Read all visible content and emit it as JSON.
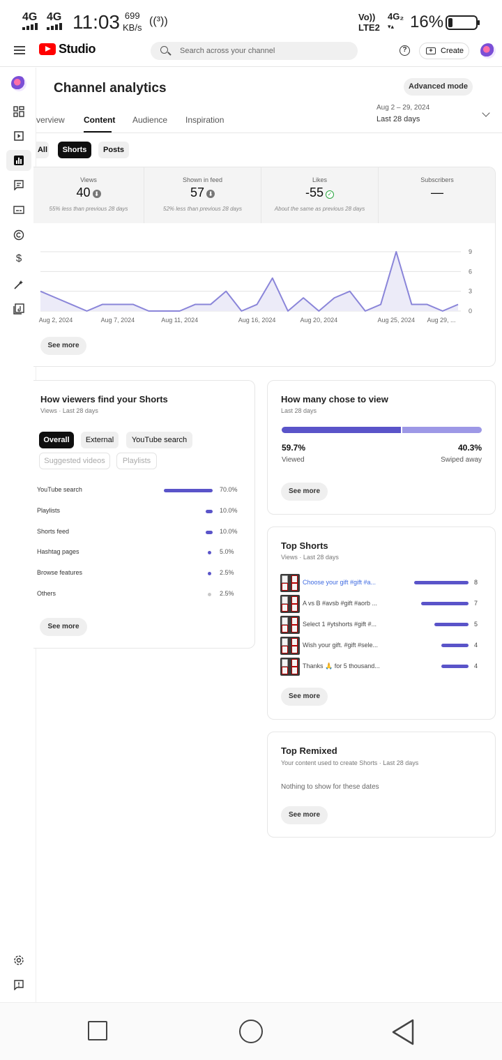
{
  "status_bar": {
    "network1": "4G",
    "network2": "4G",
    "time": "11:03",
    "speed_value": "699",
    "speed_unit": "KB/s",
    "hotspot": "((³))",
    "volte": "Vo))",
    "lte": "LTE2",
    "net_type": "4G₂",
    "battery_pct": "16%",
    "battery_level": 0.16
  },
  "topbar": {
    "app_name": "Studio",
    "search_placeholder": "Search across your channel",
    "help": "?",
    "create_label": "Create"
  },
  "page": {
    "title": "Channel analytics",
    "advanced_mode": "Advanced mode",
    "tabs": [
      "verview",
      "Content",
      "Audience",
      "Inspiration"
    ],
    "date_range": "Aug 2 – 29, 2024",
    "date_label": "Last 28 days"
  },
  "filters": [
    "All",
    "Shorts",
    "Posts"
  ],
  "metrics": [
    {
      "label": "Views",
      "value": "40",
      "note": "55% less than previous 28 days",
      "icon": "down-circle-icon",
      "icon_glyph": "⬇"
    },
    {
      "label": "Shown in feed",
      "value": "57",
      "note": "52% less than previous 28 days",
      "icon": "down-circle-icon",
      "icon_glyph": "⬇"
    },
    {
      "label": "Likes",
      "value": "-55",
      "note": "About the same as previous 28 days",
      "icon": "check-circle-icon",
      "icon_glyph": "✓"
    },
    {
      "label": "Subscribers",
      "value": "—",
      "note": "",
      "icon": "",
      "icon_glyph": ""
    }
  ],
  "chart_data": {
    "type": "area",
    "x": [
      "Aug 2",
      "Aug 3",
      "Aug 4",
      "Aug 5",
      "Aug 6",
      "Aug 7",
      "Aug 8",
      "Aug 9",
      "Aug 10",
      "Aug 11",
      "Aug 12",
      "Aug 13",
      "Aug 14",
      "Aug 15",
      "Aug 16",
      "Aug 17",
      "Aug 18",
      "Aug 19",
      "Aug 20",
      "Aug 21",
      "Aug 22",
      "Aug 23",
      "Aug 24",
      "Aug 25",
      "Aug 26",
      "Aug 27",
      "Aug 28",
      "Aug 29"
    ],
    "series": [
      {
        "values": [
          3,
          2,
          1,
          0,
          1,
          1,
          1,
          0,
          0,
          0,
          1,
          1,
          3,
          0,
          1,
          5,
          0,
          2,
          0,
          2,
          3,
          0,
          1,
          9,
          1,
          1,
          0,
          1
        ]
      }
    ],
    "x_ticks": [
      "Aug 2, 2024",
      "Aug 7, 2024",
      "Aug 11, 2024",
      "Aug 16, 2024",
      "Aug 20, 2024",
      "Aug 25, 2024",
      "Aug 29, ..."
    ],
    "x_tick_index": [
      0,
      5,
      9,
      14,
      18,
      23,
      27
    ],
    "y_ticks": [
      9,
      6,
      3,
      0
    ],
    "ylim": [
      0,
      9
    ],
    "color": "#8a85d9",
    "fill": "#ecebf8",
    "see_more": "See more"
  },
  "traffic": {
    "title": "How viewers find your Shorts",
    "subtitle": "Views · Last 28 days",
    "chips": [
      "Overall",
      "External",
      "YouTube search"
    ],
    "chips_disabled": [
      "Suggested videos",
      "Playlists"
    ],
    "sources": [
      {
        "name": "YouTube search",
        "pct": "70.0%",
        "share": 0.7
      },
      {
        "name": "Playlists",
        "pct": "10.0%",
        "share": 0.1
      },
      {
        "name": "Shorts feed",
        "pct": "10.0%",
        "share": 0.1
      },
      {
        "name": "Hashtag pages",
        "pct": "5.0%",
        "share": 0.05
      },
      {
        "name": "Browse features",
        "pct": "2.5%",
        "share": 0.025
      },
      {
        "name": "Others",
        "pct": "2.5%",
        "share": 0.025
      }
    ],
    "see_more": "See more"
  },
  "chose": {
    "title": "How many chose to view",
    "subtitle": "Last 28 days",
    "viewed_pct": "59.7%",
    "viewed_label": "Viewed",
    "swiped_pct": "40.3%",
    "swiped_label": "Swiped away",
    "viewed_share": 0.597,
    "see_more": "See more"
  },
  "top_shorts": {
    "title": "Top Shorts",
    "subtitle": "Views · Last 28 days",
    "items": [
      {
        "title": "Choose your gift #gift #a...",
        "views": "8",
        "value": 8
      },
      {
        "title": "A vs B #avsb #gift #aorb ...",
        "views": "7",
        "value": 7
      },
      {
        "title": "Select 1 #ytshorts #gift #...",
        "views": "5",
        "value": 5
      },
      {
        "title": "Wish your gift. #gift #sele...",
        "views": "4",
        "value": 4
      },
      {
        "title": "Thanks 🙏 for 5 thousand...",
        "views": "4",
        "value": 4
      }
    ],
    "see_more": "See more"
  },
  "top_remixed": {
    "title": "Top Remixed",
    "subtitle": "Your content used to create Shorts · Last 28 days",
    "empty": "Nothing to show for these dates",
    "see_more": "See more"
  }
}
